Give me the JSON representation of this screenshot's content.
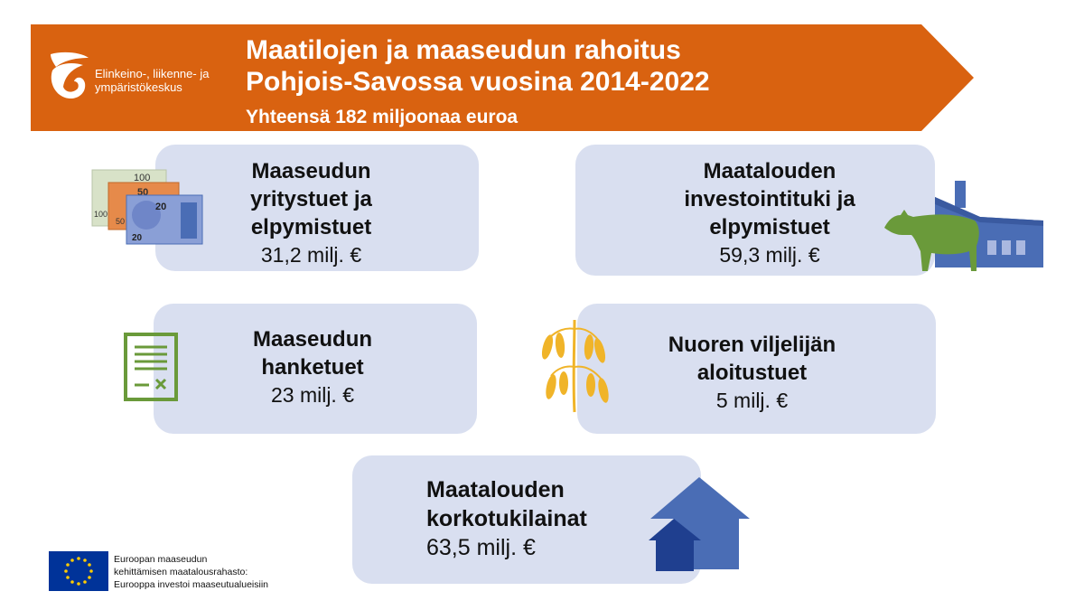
{
  "header": {
    "title_line1": "Maatilojen ja maaseudun rahoitus",
    "title_line2": "Pohjois-Savossa vuosina 2014-2022",
    "subtitle": "Yhteensä 182 miljoonaa euroa",
    "logo_line1": "Elinkeino-, liikenne- ja",
    "logo_line2": "ympäristökeskus",
    "banner_color": "#d96210"
  },
  "cards": [
    {
      "lines": [
        "Maaseudun",
        "yritystuet ja",
        "elpymistuet"
      ],
      "value": "31,2 milj. €",
      "icon": "banknotes-icon"
    },
    {
      "lines": [
        "Maatalouden",
        "investointituki ja",
        "elpymistuet"
      ],
      "value": "59,3 milj. €",
      "icon": "cow-barn-icon"
    },
    {
      "lines": [
        "Maaseudun",
        "hanketuet"
      ],
      "value": "23 milj. €",
      "icon": "document-icon"
    },
    {
      "lines": [
        "Nuoren viljelijän",
        "aloitustuet"
      ],
      "value": "5 milj. €",
      "icon": "oat-plant-icon"
    },
    {
      "lines": [
        "Maatalouden",
        "korkotukilainat"
      ],
      "value": "63,5 milj. €",
      "icon": "houses-icon"
    }
  ],
  "banknotes": {
    "note_100": "100",
    "note_50": "50",
    "note_20": "20"
  },
  "eu": {
    "line1": "Euroopan maaseudun",
    "line2": "kehittämisen maatalousrahasto:",
    "line3": "Eurooppa investoi maaseutualueisiin"
  },
  "colors": {
    "card_bg": "#d9dff0",
    "blue_icon": "#4a6db5",
    "green_icon": "#6a9a3a",
    "gold_icon": "#f0b429",
    "eu_blue": "#003399"
  }
}
